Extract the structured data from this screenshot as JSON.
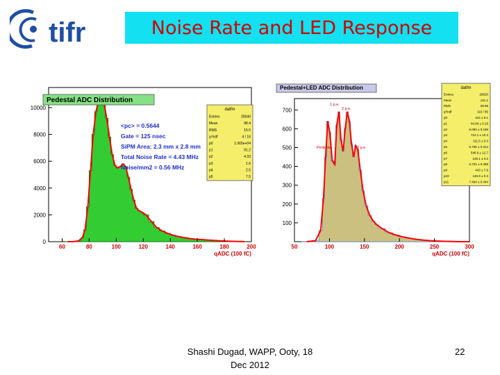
{
  "slide": {
    "title": "Noise Rate and LED Response",
    "logo_text": "tifr",
    "footer_line1": "Shashi Dugad, WAPP, Ooty, 18",
    "footer_line2": "Dec 2012",
    "page_number": "22",
    "colors": {
      "title_bg": "#13e0f0",
      "title_text": "#d10000",
      "logo_blue": "#1f4fa3"
    }
  },
  "chart_data": [
    {
      "type": "histogram",
      "title": "Pedestal ADC Distribution",
      "xlabel": "qADC (100 fC)",
      "xlim": [
        50,
        200
      ],
      "ylim": [
        0,
        11500
      ],
      "xticks": [
        60,
        80,
        100,
        120,
        140,
        160,
        180,
        200
      ],
      "yticks": [
        0,
        2000,
        4000,
        6000,
        8000,
        10000
      ],
      "fill_color": "#33cc33",
      "fit_color": "#ff0000",
      "annotations": [
        "<pc> = 0.5644",
        "Gate = 125 nsec",
        "SiPM Area: 2.3 mm x 2.8 mm",
        "Total Noise Rate = 4.43 MHz",
        "Noise/mm2 = 0.56 MHz"
      ],
      "stats_box": {
        "title": "datfm",
        "rows": [
          [
            "Entries",
            "29040"
          ],
          [
            "Mean",
            "98.4"
          ],
          [
            "RMS",
            "15.5"
          ],
          [
            "χ²/ndf",
            "4 / 16"
          ],
          [
            "p0",
            "1.065e+04"
          ],
          [
            "p1",
            "91.2"
          ],
          [
            "p2",
            "4.33"
          ],
          [
            "p3",
            "1.6"
          ],
          [
            "p4",
            "2.5"
          ],
          [
            "p5",
            "7.5"
          ]
        ]
      },
      "x": [
        62,
        66,
        70,
        74,
        76,
        78,
        80,
        82,
        84,
        86,
        88,
        90,
        92,
        94,
        96,
        98,
        100,
        102,
        104,
        106,
        108,
        110,
        112,
        114,
        116,
        118,
        120,
        124,
        128,
        132,
        136,
        140,
        144,
        148,
        152,
        156,
        160,
        165,
        170,
        175,
        180,
        185,
        190,
        195
      ],
      "y": [
        0,
        0,
        50,
        300,
        900,
        2600,
        5300,
        8000,
        9700,
        10500,
        10700,
        10300,
        9200,
        7800,
        6500,
        5700,
        5500,
        5600,
        5800,
        5600,
        4800,
        3900,
        3100,
        2500,
        2300,
        2200,
        2000,
        1500,
        1050,
        800,
        620,
        480,
        380,
        300,
        240,
        190,
        160,
        120,
        90,
        60,
        40,
        20,
        10,
        0
      ]
    },
    {
      "type": "histogram",
      "title": "Pedestal+LED ADC Distribution",
      "xlabel": "qADC (100 fC)",
      "xlim": [
        50,
        300
      ],
      "ylim": [
        0,
        760
      ],
      "xticks": [
        50,
        100,
        150,
        200,
        250,
        300
      ],
      "yticks": [
        100,
        200,
        300,
        400,
        500,
        600,
        700
      ],
      "fill_color": "#ccc080",
      "fit_color": "#ff0000",
      "peak_labels": [
        "Pedestal",
        "1 p.e.",
        "2 p.e.",
        "3 p.e."
      ],
      "stats_box": {
        "title": "datfm",
        "rows": [
          [
            "Entries",
            "28820"
          ],
          [
            "Mean",
            "131.1"
          ],
          [
            "RMS",
            "28.88"
          ],
          [
            "χ²/ndf",
            "110 / 85"
          ],
          [
            "p0",
            "444 ± 9.1"
          ],
          [
            "p1",
            "94.84 ± 0.15"
          ],
          [
            "p2",
            "6.092 ± 0.189"
          ],
          [
            "p3",
            "712.1 ± 10.4"
          ],
          [
            "p4",
            "111.5 ± 0.3"
          ],
          [
            "p5",
            "5.706 ± 0.314"
          ],
          [
            "p6",
            "548.9 ± 12.7"
          ],
          [
            "p7",
            "125.1 ± 0.2"
          ],
          [
            "p8",
            "5.701 ± 0.288"
          ],
          [
            "p9",
            "443 ± 7.6"
          ],
          [
            "p10",
            "146.9 ± 0.3"
          ],
          [
            "p11",
            "7.494 ± 0.444"
          ]
        ]
      },
      "x": [
        60,
        75,
        85,
        90,
        93,
        96,
        99,
        102,
        106,
        109,
        112,
        115,
        118,
        121,
        124,
        127,
        130,
        133,
        136,
        139,
        142,
        146,
        150,
        155,
        160,
        165,
        170,
        180,
        190,
        200,
        210,
        220,
        230,
        240,
        250,
        260,
        270,
        280,
        290,
        300
      ],
      "y": [
        0,
        5,
        60,
        230,
        450,
        640,
        580,
        430,
        410,
        620,
        690,
        540,
        480,
        600,
        690,
        640,
        520,
        450,
        510,
        490,
        380,
        270,
        190,
        140,
        110,
        90,
        70,
        48,
        35,
        25,
        18,
        12,
        8,
        5,
        3,
        2,
        1,
        0,
        0,
        0
      ]
    }
  ]
}
